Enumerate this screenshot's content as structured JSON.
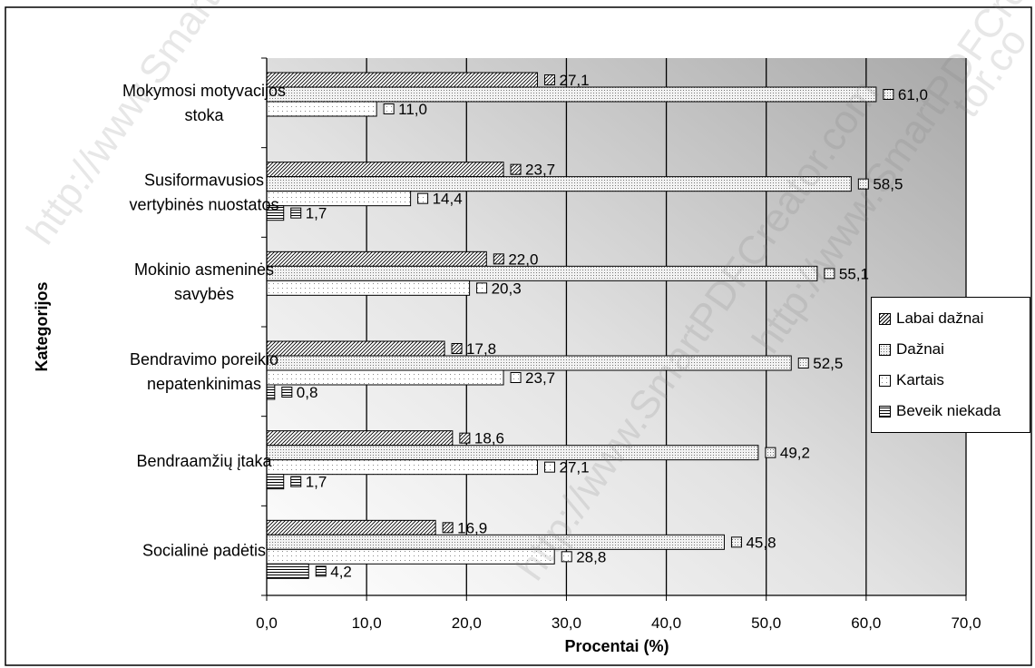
{
  "chart_data": {
    "type": "bar",
    "orientation": "horizontal",
    "xlabel": "Procentai (%)",
    "ylabel": "Kategorijos",
    "xlim": [
      0,
      70
    ],
    "x_ticks": [
      "0,0",
      "10,0",
      "20,0",
      "30,0",
      "40,0",
      "50,0",
      "60,0",
      "70,0"
    ],
    "grid": "vertical",
    "legend_position": "right",
    "categories": [
      [
        "Mokymosi motyvacijos",
        "stoka"
      ],
      [
        "Susiformavusios",
        "vertybinės nuostatos"
      ],
      [
        "Mokinio asmeninės",
        "savybės"
      ],
      [
        "Bendravimo poreikio",
        "nepatenkinimas"
      ],
      [
        "Bendraamžių įtaka"
      ],
      [
        "Socialinė padėtis"
      ]
    ],
    "series": [
      {
        "name": "Labai dažnai",
        "values": [
          27.1,
          23.7,
          22.0,
          17.8,
          18.6,
          16.9
        ],
        "labels": [
          "27,1",
          "23,7",
          "22,0",
          "17,8",
          "18,6",
          "16,9"
        ]
      },
      {
        "name": "Dažnai",
        "values": [
          61.0,
          58.5,
          55.1,
          52.5,
          49.2,
          45.8
        ],
        "labels": [
          "61,0",
          "58,5",
          "55,1",
          "52,5",
          "49,2",
          "45,8"
        ]
      },
      {
        "name": "Kartais",
        "values": [
          11.0,
          14.4,
          20.3,
          23.7,
          27.1,
          28.8
        ],
        "labels": [
          "11,0",
          "14,4",
          "20,3",
          "23,7",
          "27,1",
          "28,8"
        ]
      },
      {
        "name": "Beveik niekada",
        "values": [
          null,
          1.7,
          null,
          0.8,
          1.7,
          4.2
        ],
        "labels": [
          null,
          "1,7",
          null,
          "0,8",
          "1,7",
          "4,2"
        ]
      }
    ]
  },
  "watermarks": [
    "http://www.SmartPDFCreator.com",
    "http://www.SmartPDFCreator.com",
    "http://www.SmartPDFCreator.com",
    "tor.co"
  ]
}
